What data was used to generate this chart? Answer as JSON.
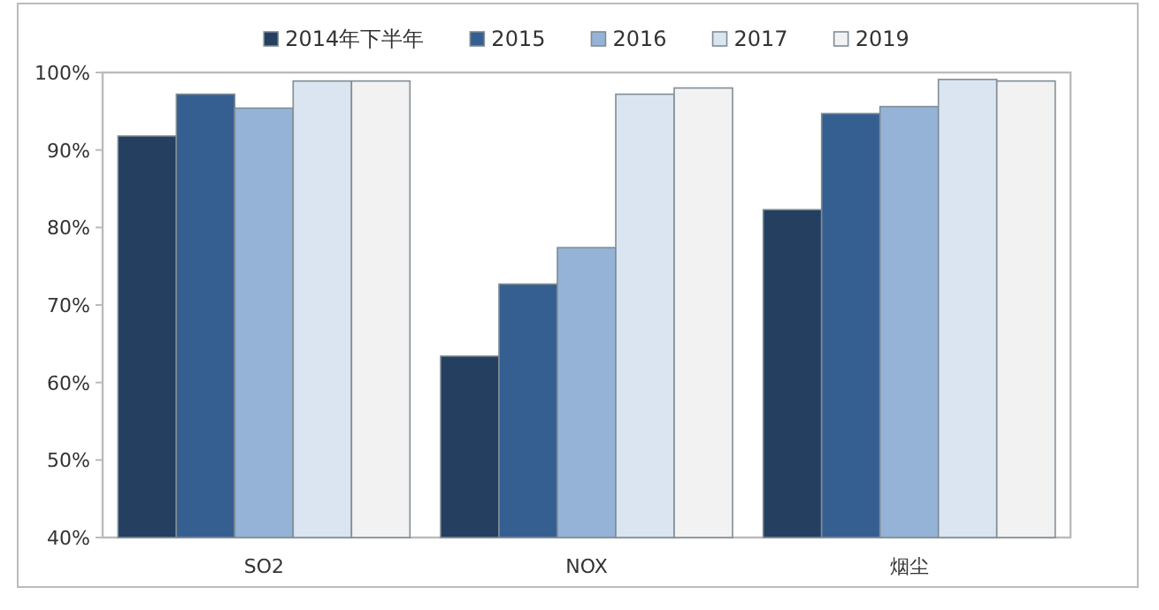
{
  "chart_data": {
    "type": "bar",
    "categories": [
      "SO2",
      "NOX",
      "烟尘"
    ],
    "series": [
      {
        "name": "2014年下半年",
        "color": "#243f60",
        "values": [
          91.8,
          63.4,
          82.3
        ]
      },
      {
        "name": "2015",
        "color": "#365f91",
        "values": [
          97.2,
          72.7,
          94.7
        ]
      },
      {
        "name": "2016",
        "color": "#95b3d7",
        "values": [
          95.4,
          77.4,
          95.6
        ]
      },
      {
        "name": "2017",
        "color": "#dbe5f1",
        "values": [
          98.9,
          97.2,
          99.1
        ]
      },
      {
        "name": "2019",
        "color": "#f2f2f2",
        "values": [
          98.9,
          98.0,
          98.9
        ]
      }
    ],
    "ylim": [
      40,
      100
    ],
    "yticks": [
      {
        "value": 40,
        "label": "40%"
      },
      {
        "value": 50,
        "label": "50%"
      },
      {
        "value": 60,
        "label": "60%"
      },
      {
        "value": 70,
        "label": "70%"
      },
      {
        "value": 80,
        "label": "80%"
      },
      {
        "value": 90,
        "label": "90%"
      },
      {
        "value": 100,
        "label": "100%"
      }
    ],
    "grid": false,
    "legend": "top"
  }
}
